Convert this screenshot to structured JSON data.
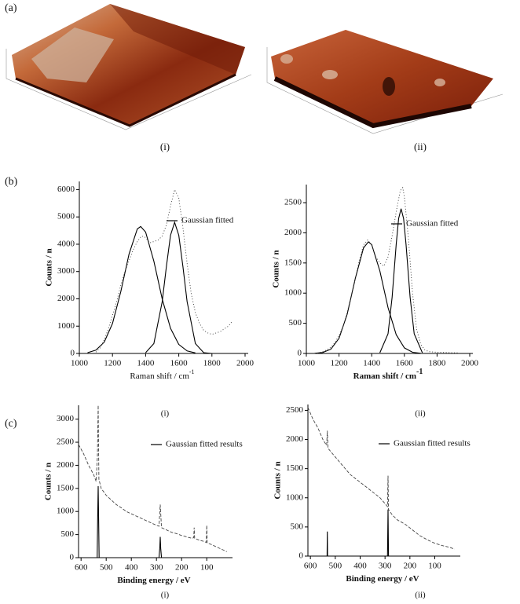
{
  "panel_labels": [
    "(a)",
    "(b)",
    "(c)"
  ],
  "afm_captions": [
    "(i)",
    "(ii)"
  ],
  "chart_data": [
    {
      "type": "line",
      "caption": "(i)",
      "xlabel": "Raman shift / cm",
      "xlabel_sup": "-1",
      "ylabel": "Counts / n",
      "xlim": [
        1000,
        2000
      ],
      "xticks": [
        1000,
        1200,
        1400,
        1600,
        1800,
        2000
      ],
      "ylim": [
        0,
        6300
      ],
      "yticks": [
        0,
        1000,
        2000,
        3000,
        4000,
        5000,
        6000
      ],
      "grid": false,
      "legend": "upper right",
      "series": [
        {
          "name": "Gaussian fitted",
          "color": "#000000",
          "dash": "solid",
          "x": [
            1050,
            1100,
            1150,
            1200,
            1250,
            1300,
            1350,
            1370,
            1400,
            1450,
            1500,
            1550,
            1600,
            1650,
            1700
          ],
          "values": [
            28,
            121,
            414,
            1096,
            2264,
            3641,
            4559,
            4650,
            4445,
            3377,
            1997,
            921,
            330,
            92,
            20
          ]
        },
        {
          "color": "#000000",
          "dash": "solid",
          "x": [
            1400,
            1450,
            1500,
            1525,
            1550,
            1575,
            1600,
            1625,
            1650,
            1700,
            1750,
            1800
          ],
          "values": [
            30,
            363,
            1895,
            3175,
            4329,
            4800,
            4329,
            3175,
            1895,
            363,
            30,
            1
          ]
        },
        {
          "color": "#333333",
          "dash": "dotted",
          "x": [
            1100,
            1125,
            1150,
            1175,
            1200,
            1225,
            1250,
            1275,
            1300,
            1325,
            1350,
            1375,
            1400,
            1425,
            1450,
            1475,
            1500,
            1525,
            1550,
            1575,
            1600,
            1625,
            1650,
            1675,
            1700,
            1725,
            1750,
            1775,
            1800,
            1825,
            1850,
            1875,
            1900,
            1925
          ],
          "values": [
            50,
            200,
            500,
            900,
            1400,
            1900,
            2500,
            3000,
            3400,
            3800,
            4100,
            4300,
            4250,
            4050,
            4100,
            4150,
            4300,
            4700,
            5400,
            6000,
            5700,
            4600,
            3300,
            2200,
            1500,
            1100,
            850,
            750,
            700,
            750,
            800,
            900,
            1000,
            1200
          ]
        }
      ]
    },
    {
      "type": "line",
      "caption": "(ii)",
      "xlabel": "Raman shift / cm",
      "xlabel_sup": "-1",
      "ylabel": "Counts / n",
      "xlim": [
        1000,
        2000
      ],
      "xticks": [
        1000,
        1200,
        1400,
        1600,
        1800,
        2000
      ],
      "ylim": [
        0,
        2800
      ],
      "yticks": [
        0,
        500,
        1000,
        1500,
        2000,
        2500
      ],
      "grid": false,
      "legend": "upper right",
      "series": [
        {
          "name": "Gaussian fitted",
          "color": "#000000",
          "dash": "solid",
          "x": [
            1050,
            1100,
            1150,
            1200,
            1250,
            1300,
            1350,
            1380,
            1400,
            1450,
            1500,
            1550,
            1600,
            1650,
            1700
          ],
          "values": [
            2,
            15,
            70,
            250,
            651,
            1247,
            1750,
            1850,
            1805,
            1367,
            760,
            311,
            93,
            20,
            3
          ]
        },
        {
          "color": "#000000",
          "dash": "solid",
          "x": [
            1450,
            1500,
            1525,
            1550,
            1565,
            1580,
            1595,
            1610,
            1635,
            1660,
            1710
          ],
          "values": [
            12,
            325,
            933,
            1812,
            2237,
            2400,
            2237,
            1812,
            933,
            325,
            12
          ]
        },
        {
          "color": "#333333",
          "dash": "dotted",
          "x": [
            1050,
            1075,
            1100,
            1125,
            1150,
            1175,
            1200,
            1225,
            1250,
            1275,
            1300,
            1325,
            1350,
            1375,
            1400,
            1425,
            1450,
            1475,
            1500,
            1525,
            1550,
            1575,
            1590,
            1600,
            1625,
            1650,
            1675,
            1700,
            1725,
            1750,
            1800,
            1850,
            1900,
            1925
          ],
          "values": [
            0,
            10,
            30,
            60,
            100,
            180,
            300,
            450,
            680,
            950,
            1250,
            1550,
            1800,
            1880,
            1800,
            1600,
            1500,
            1450,
            1600,
            1950,
            2350,
            2700,
            2750,
            2600,
            1900,
            1000,
            400,
            150,
            60,
            30,
            20,
            15,
            10,
            10
          ]
        }
      ]
    },
    {
      "type": "line",
      "caption": "(i)",
      "xlabel": "Binding energy / eV",
      "ylabel": "Counts / n",
      "xlim": [
        610,
        10
      ],
      "xticks": [
        600,
        500,
        400,
        300,
        200,
        100
      ],
      "ylim": [
        0,
        3300
      ],
      "yticks": [
        0,
        500,
        1000,
        1500,
        2000,
        2500,
        3000
      ],
      "grid": false,
      "legend": "upper right",
      "series": [
        {
          "name": "Gaussian fitted results",
          "color": "#000000",
          "dash": "solid",
          "x": [
            610,
            536,
            534,
            532,
            530,
            528,
            290,
            287,
            285,
            283,
            280,
            10
          ],
          "values": [
            0,
            0,
            800,
            1550,
            800,
            0,
            0,
            200,
            450,
            200,
            0,
            0
          ]
        },
        {
          "color": "#444444",
          "dash": "dashed",
          "x": [
            610,
            590,
            570,
            550,
            540,
            535,
            532,
            529,
            520,
            500,
            480,
            460,
            440,
            420,
            400,
            380,
            360,
            340,
            320,
            300,
            290,
            285,
            280,
            260,
            240,
            220,
            200,
            180,
            160,
            152,
            150,
            148,
            130,
            110,
            102,
            100,
            98,
            80,
            60,
            40,
            20
          ],
          "values": [
            2450,
            2250,
            2000,
            1800,
            1650,
            2200,
            3300,
            1700,
            1500,
            1350,
            1250,
            1150,
            1080,
            1000,
            950,
            900,
            850,
            800,
            750,
            700,
            680,
            1150,
            650,
            600,
            550,
            520,
            480,
            450,
            420,
            430,
            650,
            420,
            380,
            350,
            330,
            700,
            320,
            280,
            230,
            180,
            130
          ]
        }
      ]
    },
    {
      "type": "line",
      "caption": "(ii)",
      "xlabel": "Binding energy / eV",
      "ylabel": "Counts / n",
      "xlim": [
        610,
        10
      ],
      "xticks": [
        600,
        500,
        400,
        300,
        200,
        100
      ],
      "ylim": [
        0,
        2600
      ],
      "yticks": [
        0,
        500,
        1000,
        1500,
        2000,
        2500
      ],
      "grid": false,
      "legend": "upper right",
      "series": [
        {
          "name": "Gaussian fitted results",
          "color": "#000000",
          "dash": "solid",
          "x": [
            610,
            533,
            532,
            531,
            290,
            288,
            286,
            10
          ],
          "values": [
            0,
            0,
            420,
            0,
            0,
            800,
            0,
            0
          ]
        },
        {
          "color": "#444444",
          "dash": "dashed",
          "x": [
            610,
            590,
            570,
            550,
            535,
            532,
            529,
            500,
            470,
            440,
            410,
            380,
            350,
            320,
            300,
            290,
            288,
            286,
            270,
            250,
            220,
            190,
            160,
            130,
            100,
            70,
            40,
            20
          ],
          "values": [
            2550,
            2350,
            2200,
            2000,
            1900,
            2150,
            1850,
            1700,
            1550,
            1400,
            1300,
            1200,
            1100,
            1000,
            900,
            850,
            1380,
            800,
            700,
            620,
            550,
            450,
            350,
            280,
            220,
            180,
            150,
            120
          ]
        }
      ]
    }
  ]
}
